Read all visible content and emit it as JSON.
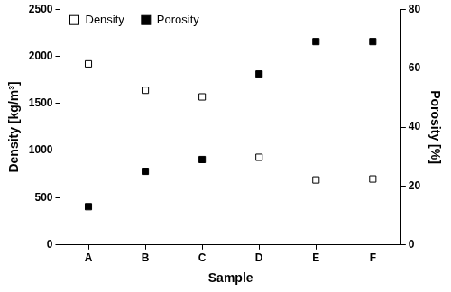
{
  "chart_data": {
    "type": "scatter",
    "categories": [
      "A",
      "B",
      "C",
      "D",
      "E",
      "F"
    ],
    "xlabel": "Sample",
    "ylabel": "Density [kg/m³]",
    "y2label": "Porosity [%]",
    "series": [
      {
        "name": "Density",
        "color": "#000000",
        "marker": "square-open",
        "values": [
          1920,
          1640,
          1570,
          930,
          690,
          700
        ]
      },
      {
        "name": "Porosity",
        "color": "#000000",
        "marker": "square",
        "axis": "y2",
        "values": [
          13,
          25,
          29,
          58,
          69,
          69
        ]
      }
    ],
    "ylim": [
      0,
      2500
    ],
    "yticks": [
      0,
      500,
      1000,
      1500,
      2000,
      2500
    ],
    "y2lim": [
      0,
      80
    ],
    "y2ticks": [
      0,
      20,
      40,
      60,
      80
    ],
    "grid": false,
    "legend": "upper left"
  }
}
